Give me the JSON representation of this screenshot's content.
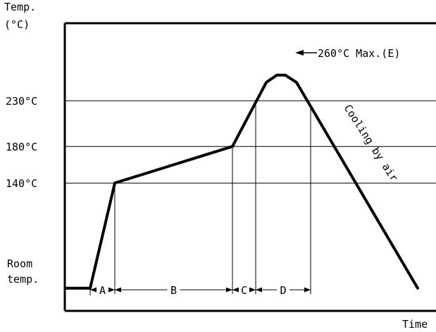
{
  "chart_data": {
    "type": "line",
    "axis_title_y_line1": "Temp.",
    "axis_title_y_line2": "(°C)",
    "axis_title_x": "Time",
    "room_label_line1": "Room",
    "room_label_line2": "temp.",
    "reference_lines": [
      {
        "label": "230°C",
        "value": 230
      },
      {
        "label": "180°C",
        "value": 180
      },
      {
        "label": "140°C",
        "value": 140
      }
    ],
    "peak_label": "260°C Max.(E)",
    "cooling_label": "Cooling by air",
    "segments": [
      "A",
      "B",
      "C",
      "D"
    ],
    "profile": [
      {
        "t": 0,
        "temp": 25
      },
      {
        "t": 35,
        "temp": 25
      },
      {
        "t": 70,
        "temp": 140
      },
      {
        "t": 237,
        "temp": 180
      },
      {
        "t": 285,
        "temp": 250
      },
      {
        "t": 300,
        "temp": 258
      },
      {
        "t": 312,
        "temp": 258
      },
      {
        "t": 328,
        "temp": 250
      },
      {
        "t": 500,
        "temp": 25
      }
    ],
    "segment_bounds": [
      35,
      70,
      237,
      270,
      348
    ],
    "grid": false
  }
}
